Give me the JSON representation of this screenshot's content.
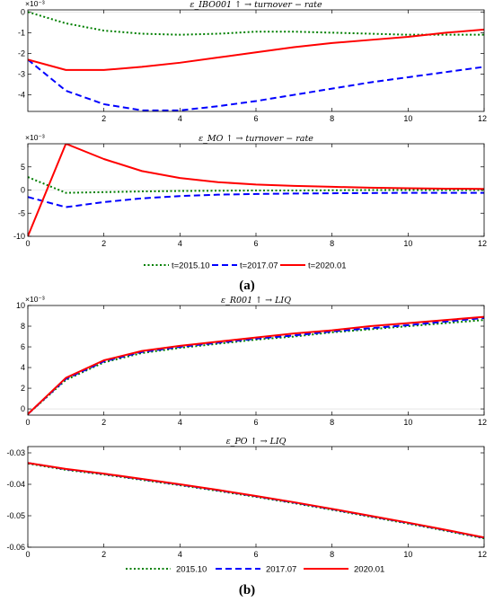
{
  "sublabels": {
    "a": "(a)",
    "b": "(b)"
  },
  "legend": {
    "a": [
      "t=2015.10",
      "t=2017.07",
      "t=2020.01"
    ],
    "b": [
      "2015.10",
      "2017.07",
      "2020.01"
    ]
  },
  "series_styles": [
    {
      "color": "#007f00",
      "dash": "2,2.5",
      "width": 2
    },
    {
      "color": "#0000ff",
      "dash": "7,4",
      "width": 2
    },
    {
      "color": "#ff0000",
      "dash": "",
      "width": 2
    }
  ],
  "chart_data": [
    {
      "type": "line",
      "title": "ε_IBO001 ↑ → turnover − rate",
      "exponent_label": "×10⁻³",
      "x": [
        0,
        1,
        2,
        3,
        4,
        5,
        6,
        7,
        8,
        9,
        10,
        11,
        12
      ],
      "xlim": [
        0,
        12
      ],
      "ylim": [
        -4.8,
        0.1
      ],
      "xticks": [
        2,
        4,
        6,
        8,
        10,
        12
      ],
      "yticks": [
        0,
        -1,
        -2,
        -3,
        -4
      ],
      "series": [
        {
          "name": "t=2015.10",
          "values": [
            0.0,
            -0.55,
            -0.9,
            -1.05,
            -1.1,
            -1.05,
            -0.95,
            -0.95,
            -1.0,
            -1.05,
            -1.1,
            -1.1,
            -1.1
          ]
        },
        {
          "name": "t=2017.07",
          "values": [
            -2.3,
            -3.8,
            -4.45,
            -4.75,
            -4.75,
            -4.55,
            -4.3,
            -4.0,
            -3.7,
            -3.4,
            -3.15,
            -2.9,
            -2.65
          ]
        },
        {
          "name": "t=2020.01",
          "values": [
            -2.3,
            -2.8,
            -2.8,
            -2.65,
            -2.45,
            -2.2,
            -1.95,
            -1.7,
            -1.5,
            -1.35,
            -1.2,
            -1.0,
            -0.85
          ]
        }
      ]
    },
    {
      "type": "line",
      "title": "ε_MO ↑ → turnover − rate",
      "exponent_label": "×10⁻³",
      "x": [
        0,
        1,
        2,
        3,
        4,
        5,
        6,
        7,
        8,
        9,
        10,
        11,
        12
      ],
      "xlim": [
        0,
        12
      ],
      "ylim": [
        -10,
        10
      ],
      "xticks": [
        0,
        2,
        4,
        6,
        8,
        10,
        12
      ],
      "yticks": [
        5,
        0,
        -5,
        -10
      ],
      "series": [
        {
          "name": "t=2015.10",
          "values": [
            2.8,
            -0.6,
            -0.45,
            -0.3,
            -0.2,
            -0.15,
            -0.1,
            -0.1,
            -0.05,
            0.0,
            0.0,
            0.0,
            0.0
          ]
        },
        {
          "name": "t=2017.07",
          "values": [
            -1.5,
            -3.7,
            -2.6,
            -1.8,
            -1.3,
            -1.0,
            -0.85,
            -0.75,
            -0.7,
            -0.65,
            -0.6,
            -0.6,
            -0.6
          ]
        },
        {
          "name": "t=2020.01",
          "values": [
            -10.0,
            10.0,
            6.7,
            4.1,
            2.6,
            1.7,
            1.2,
            0.9,
            0.7,
            0.5,
            0.4,
            0.3,
            0.25
          ]
        }
      ]
    },
    {
      "type": "line",
      "title": "ε_R001 ↑ → LIQ",
      "exponent_label": "×10⁻³",
      "x": [
        0,
        1,
        2,
        3,
        4,
        5,
        6,
        7,
        8,
        9,
        10,
        11,
        12
      ],
      "xlim": [
        0,
        12
      ],
      "ylim": [
        -0.6,
        10
      ],
      "xticks": [
        0,
        2,
        4,
        6,
        8,
        10,
        12
      ],
      "yticks": [
        10,
        8,
        6,
        4,
        2,
        0
      ],
      "series": [
        {
          "name": "2015.10",
          "values": [
            -0.5,
            2.8,
            4.5,
            5.4,
            5.9,
            6.3,
            6.7,
            7.0,
            7.4,
            7.7,
            8.0,
            8.3,
            8.6
          ]
        },
        {
          "name": "2017.07",
          "values": [
            -0.5,
            2.9,
            4.6,
            5.5,
            6.0,
            6.4,
            6.8,
            7.1,
            7.5,
            7.8,
            8.1,
            8.45,
            8.8
          ]
        },
        {
          "name": "2020.01",
          "values": [
            -0.5,
            3.0,
            4.7,
            5.6,
            6.1,
            6.5,
            6.9,
            7.3,
            7.6,
            8.0,
            8.3,
            8.6,
            8.9
          ]
        }
      ]
    },
    {
      "type": "line",
      "title": "ε_PO ↑ → LIQ",
      "exponent_label": "",
      "x": [
        0,
        1,
        2,
        3,
        4,
        5,
        6,
        7,
        8,
        9,
        10,
        11,
        12
      ],
      "xlim": [
        0,
        12
      ],
      "ylim": [
        -0.06,
        -0.028
      ],
      "xticks": [
        0,
        2,
        4,
        6,
        8,
        10,
        12
      ],
      "yticks": [
        -0.03,
        -0.04,
        -0.05,
        -0.06
      ],
      "series": [
        {
          "name": "2015.10",
          "values": [
            -0.0334,
            -0.0354,
            -0.0369,
            -0.0386,
            -0.0403,
            -0.0421,
            -0.044,
            -0.046,
            -0.0481,
            -0.0503,
            -0.0525,
            -0.0548,
            -0.0572
          ]
        },
        {
          "name": "2017.07",
          "values": [
            -0.0332,
            -0.0352,
            -0.0367,
            -0.0384,
            -0.0401,
            -0.0419,
            -0.0438,
            -0.0458,
            -0.0479,
            -0.0501,
            -0.0523,
            -0.0546,
            -0.057
          ]
        },
        {
          "name": "2020.01",
          "values": [
            -0.0332,
            -0.0351,
            -0.0366,
            -0.0383,
            -0.04,
            -0.0418,
            -0.0437,
            -0.0457,
            -0.0478,
            -0.05,
            -0.0522,
            -0.0545,
            -0.0569
          ]
        }
      ]
    }
  ]
}
